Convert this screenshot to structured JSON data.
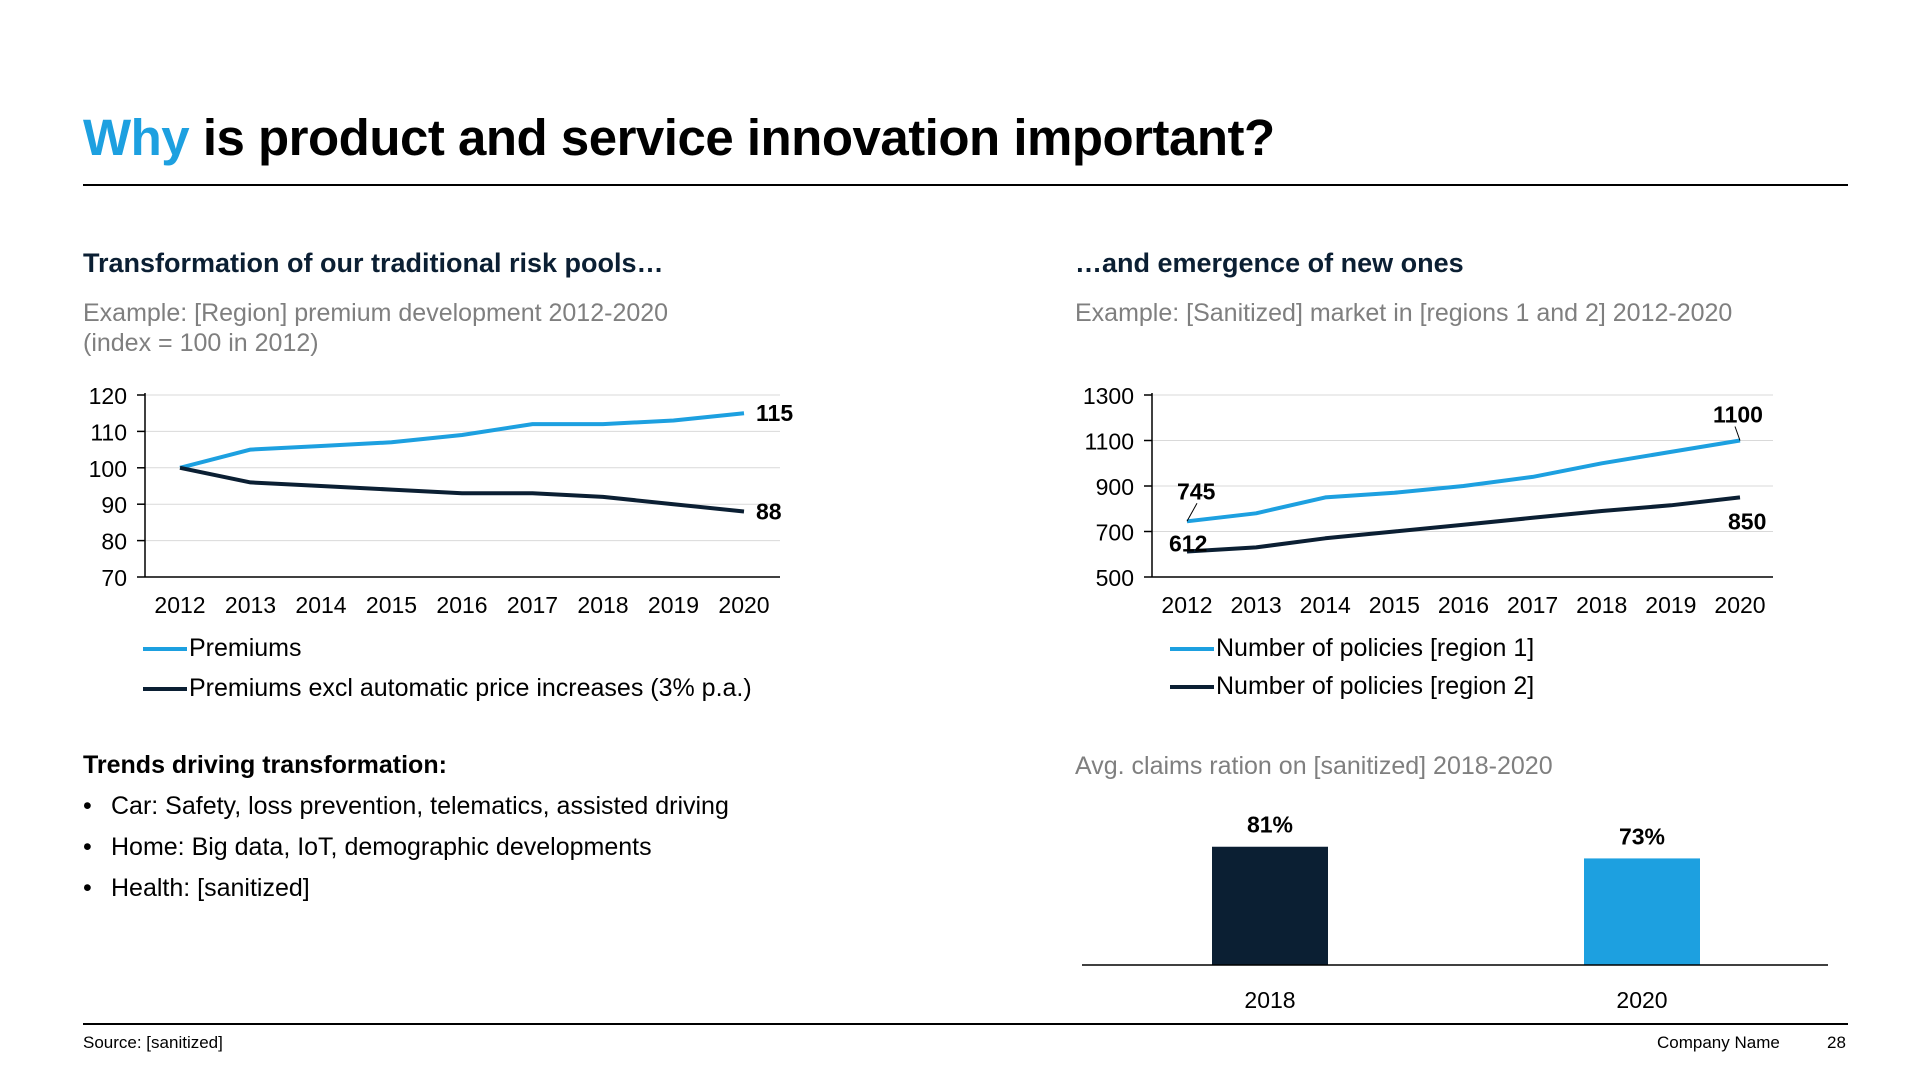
{
  "header": {
    "title_accent": "Why",
    "title_rest": " is product and service innovation important?"
  },
  "left": {
    "heading": "Transformation of our traditional risk pools…",
    "subtitle_line1": "Example: [Region] premium development 2012-2020",
    "subtitle_line2": "(index = 100 in 2012)",
    "legend": [
      {
        "label": "Premiums",
        "color": "#1da0e0"
      },
      {
        "label": "Premiums excl automatic price increases (3% p.a.)",
        "color": "#0b1f33"
      }
    ],
    "trends_title": "Trends driving transformation:",
    "trends": [
      "Car: Safety, loss prevention, telematics, assisted driving",
      "Home: Big data, IoT, demographic developments",
      "Health: [sanitized]"
    ]
  },
  "right": {
    "heading": "…and emergence of new ones",
    "subtitle": "Example: [Sanitized] market in [regions 1 and 2] 2012-2020",
    "legend": [
      {
        "label": "Number of policies [region 1]",
        "color": "#1da0e0"
      },
      {
        "label": "Number of policies [region 2]",
        "color": "#0b1f33"
      }
    ],
    "bar_subtitle": "Avg. claims ration on [sanitized] 2018-2020"
  },
  "footer": {
    "source": "Source: [sanitized]",
    "company": "Company Name",
    "page": "28"
  },
  "chart_data": [
    {
      "type": "line",
      "x": [
        "2012",
        "2013",
        "2014",
        "2015",
        "2016",
        "2017",
        "2018",
        "2019",
        "2020"
      ],
      "series": [
        {
          "name": "Premiums",
          "values": [
            100,
            105,
            106,
            107,
            109,
            112,
            112,
            113,
            115
          ],
          "color": "#1da0e0",
          "end_label": "115"
        },
        {
          "name": "Premiums excl automatic price increases (3% p.a.)",
          "values": [
            100,
            96,
            95,
            94,
            93,
            93,
            92,
            90,
            88
          ],
          "color": "#0b1f33",
          "end_label": "88"
        }
      ],
      "ylim": [
        70,
        120
      ],
      "yticks": [
        "120",
        "110",
        "100",
        "90",
        "80",
        "70"
      ],
      "grid": true,
      "legend": "bottom"
    },
    {
      "type": "line",
      "x": [
        "2012",
        "2013",
        "2014",
        "2015",
        "2016",
        "2017",
        "2018",
        "2019",
        "2020"
      ],
      "series": [
        {
          "name": "Number of policies [region 1]",
          "values": [
            745,
            780,
            850,
            870,
            900,
            940,
            1000,
            1050,
            1100
          ],
          "color": "#1da0e0",
          "start_label": "745",
          "end_label": "1100"
        },
        {
          "name": "Number of policies [region 2]",
          "values": [
            612,
            630,
            670,
            700,
            730,
            760,
            790,
            815,
            850
          ],
          "color": "#0b1f33",
          "start_label": "612",
          "end_label": "850"
        }
      ],
      "ylim": [
        500,
        1300
      ],
      "yticks": [
        "1300",
        "1100",
        "900",
        "700",
        "500"
      ],
      "grid": true,
      "legend": "bottom"
    },
    {
      "type": "bar",
      "title": "Avg. claims ration on [sanitized] 2018-2020",
      "categories": [
        "2018",
        "2020"
      ],
      "values": [
        81,
        73
      ],
      "value_labels": [
        "81%",
        "73%"
      ],
      "colors": [
        "#0b1f33",
        "#1da0e0"
      ],
      "ylim": [
        0,
        100
      ]
    }
  ]
}
